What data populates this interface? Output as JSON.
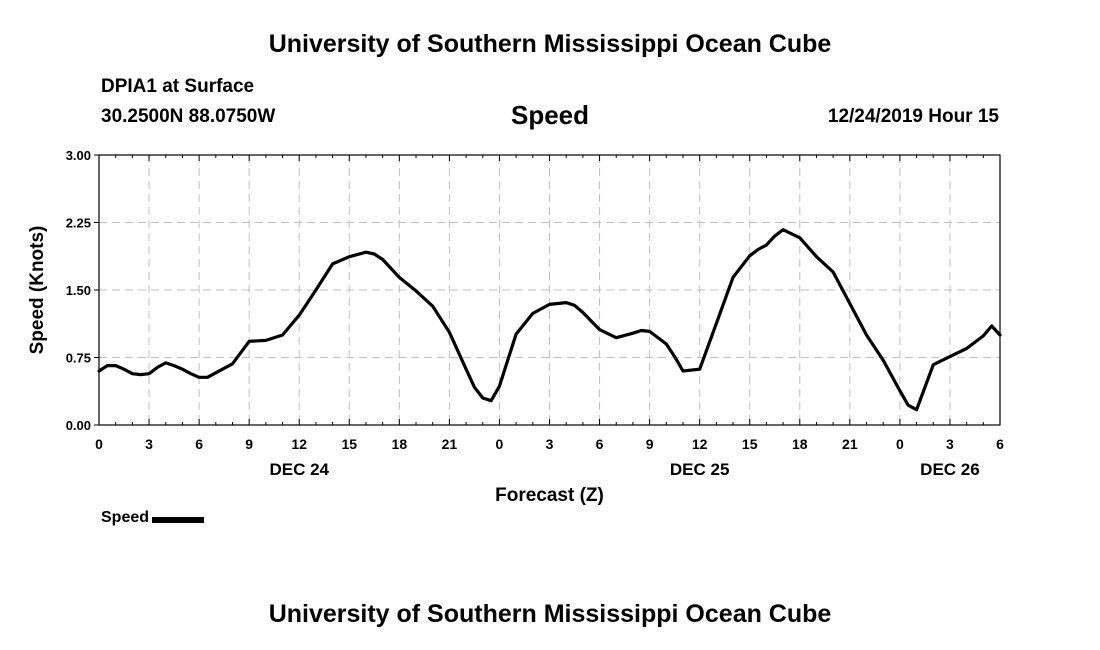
{
  "header": {
    "title": "University of Southern Mississippi Ocean Cube",
    "station": "DPIA1 at Surface",
    "location": "30.2500N 88.0750W",
    "variable": "Speed",
    "valid_time": "12/24/2019 Hour 15"
  },
  "footer": {
    "title": "University of Southern Mississippi Ocean Cube"
  },
  "legend": {
    "label": "Speed"
  },
  "colors": {
    "line": "#000000",
    "grid": "#bfbfbf"
  },
  "chart_data": {
    "type": "line",
    "ylabel": "Speed (Knots)",
    "xlabel": "Forecast (Z)",
    "x_unit": "hours from 2019-12-24 00Z",
    "xlim": [
      0,
      54
    ],
    "ylim": [
      0,
      3
    ],
    "yticks": [
      "0.00",
      "0.75",
      "1.50",
      "2.25",
      "3.00"
    ],
    "yticks_values": [
      0,
      0.75,
      1.5,
      2.25,
      3.0
    ],
    "xtick_hours": [
      0,
      3,
      6,
      9,
      12,
      15,
      18,
      21,
      24,
      27,
      30,
      33,
      36,
      39,
      42,
      45,
      48,
      51,
      54
    ],
    "xtick_labels": [
      "0",
      "3",
      "6",
      "9",
      "12",
      "15",
      "18",
      "21",
      "0",
      "3",
      "6",
      "9",
      "12",
      "15",
      "18",
      "21",
      "0",
      "3",
      "6"
    ],
    "day_labels": [
      {
        "hour": 12,
        "label": "DEC 24"
      },
      {
        "hour": 36,
        "label": "DEC 25"
      },
      {
        "hour": 51,
        "label": "DEC 26"
      }
    ],
    "grid": true,
    "legend_position": "bottom-left",
    "series": [
      {
        "name": "Speed",
        "x": [
          0,
          0.5,
          1,
          1.5,
          2,
          2.5,
          3,
          3.5,
          4,
          4.5,
          5,
          5.5,
          6,
          6.5,
          7,
          8,
          9,
          10,
          11,
          12,
          13,
          14,
          15,
          16,
          16.5,
          17,
          18,
          19,
          20,
          21,
          22,
          22.5,
          23,
          23.5,
          24,
          25,
          26,
          27,
          28,
          28.5,
          29,
          30,
          31,
          32,
          32.5,
          33,
          34,
          34.5,
          35,
          36,
          37,
          38,
          39,
          39.5,
          40,
          40.5,
          41,
          42,
          43,
          44,
          45,
          46,
          47,
          48,
          48.5,
          49,
          50,
          51,
          52,
          53,
          53.5,
          54
        ],
        "y": [
          0.6,
          0.66,
          0.66,
          0.62,
          0.57,
          0.56,
          0.57,
          0.64,
          0.69,
          0.66,
          0.62,
          0.57,
          0.53,
          0.53,
          0.58,
          0.68,
          0.93,
          0.94,
          1.0,
          1.22,
          1.5,
          1.79,
          1.87,
          1.92,
          1.9,
          1.84,
          1.64,
          1.49,
          1.32,
          1.03,
          0.62,
          0.42,
          0.3,
          0.27,
          0.43,
          1.01,
          1.24,
          1.34,
          1.36,
          1.33,
          1.25,
          1.06,
          0.97,
          1.02,
          1.05,
          1.04,
          0.9,
          0.76,
          0.6,
          0.62,
          1.13,
          1.64,
          1.88,
          1.95,
          2.0,
          2.1,
          2.17,
          2.08,
          1.87,
          1.7,
          1.35,
          1.0,
          0.72,
          0.38,
          0.22,
          0.17,
          0.67,
          0.76,
          0.85,
          0.99,
          1.1,
          1.0
        ]
      }
    ]
  }
}
